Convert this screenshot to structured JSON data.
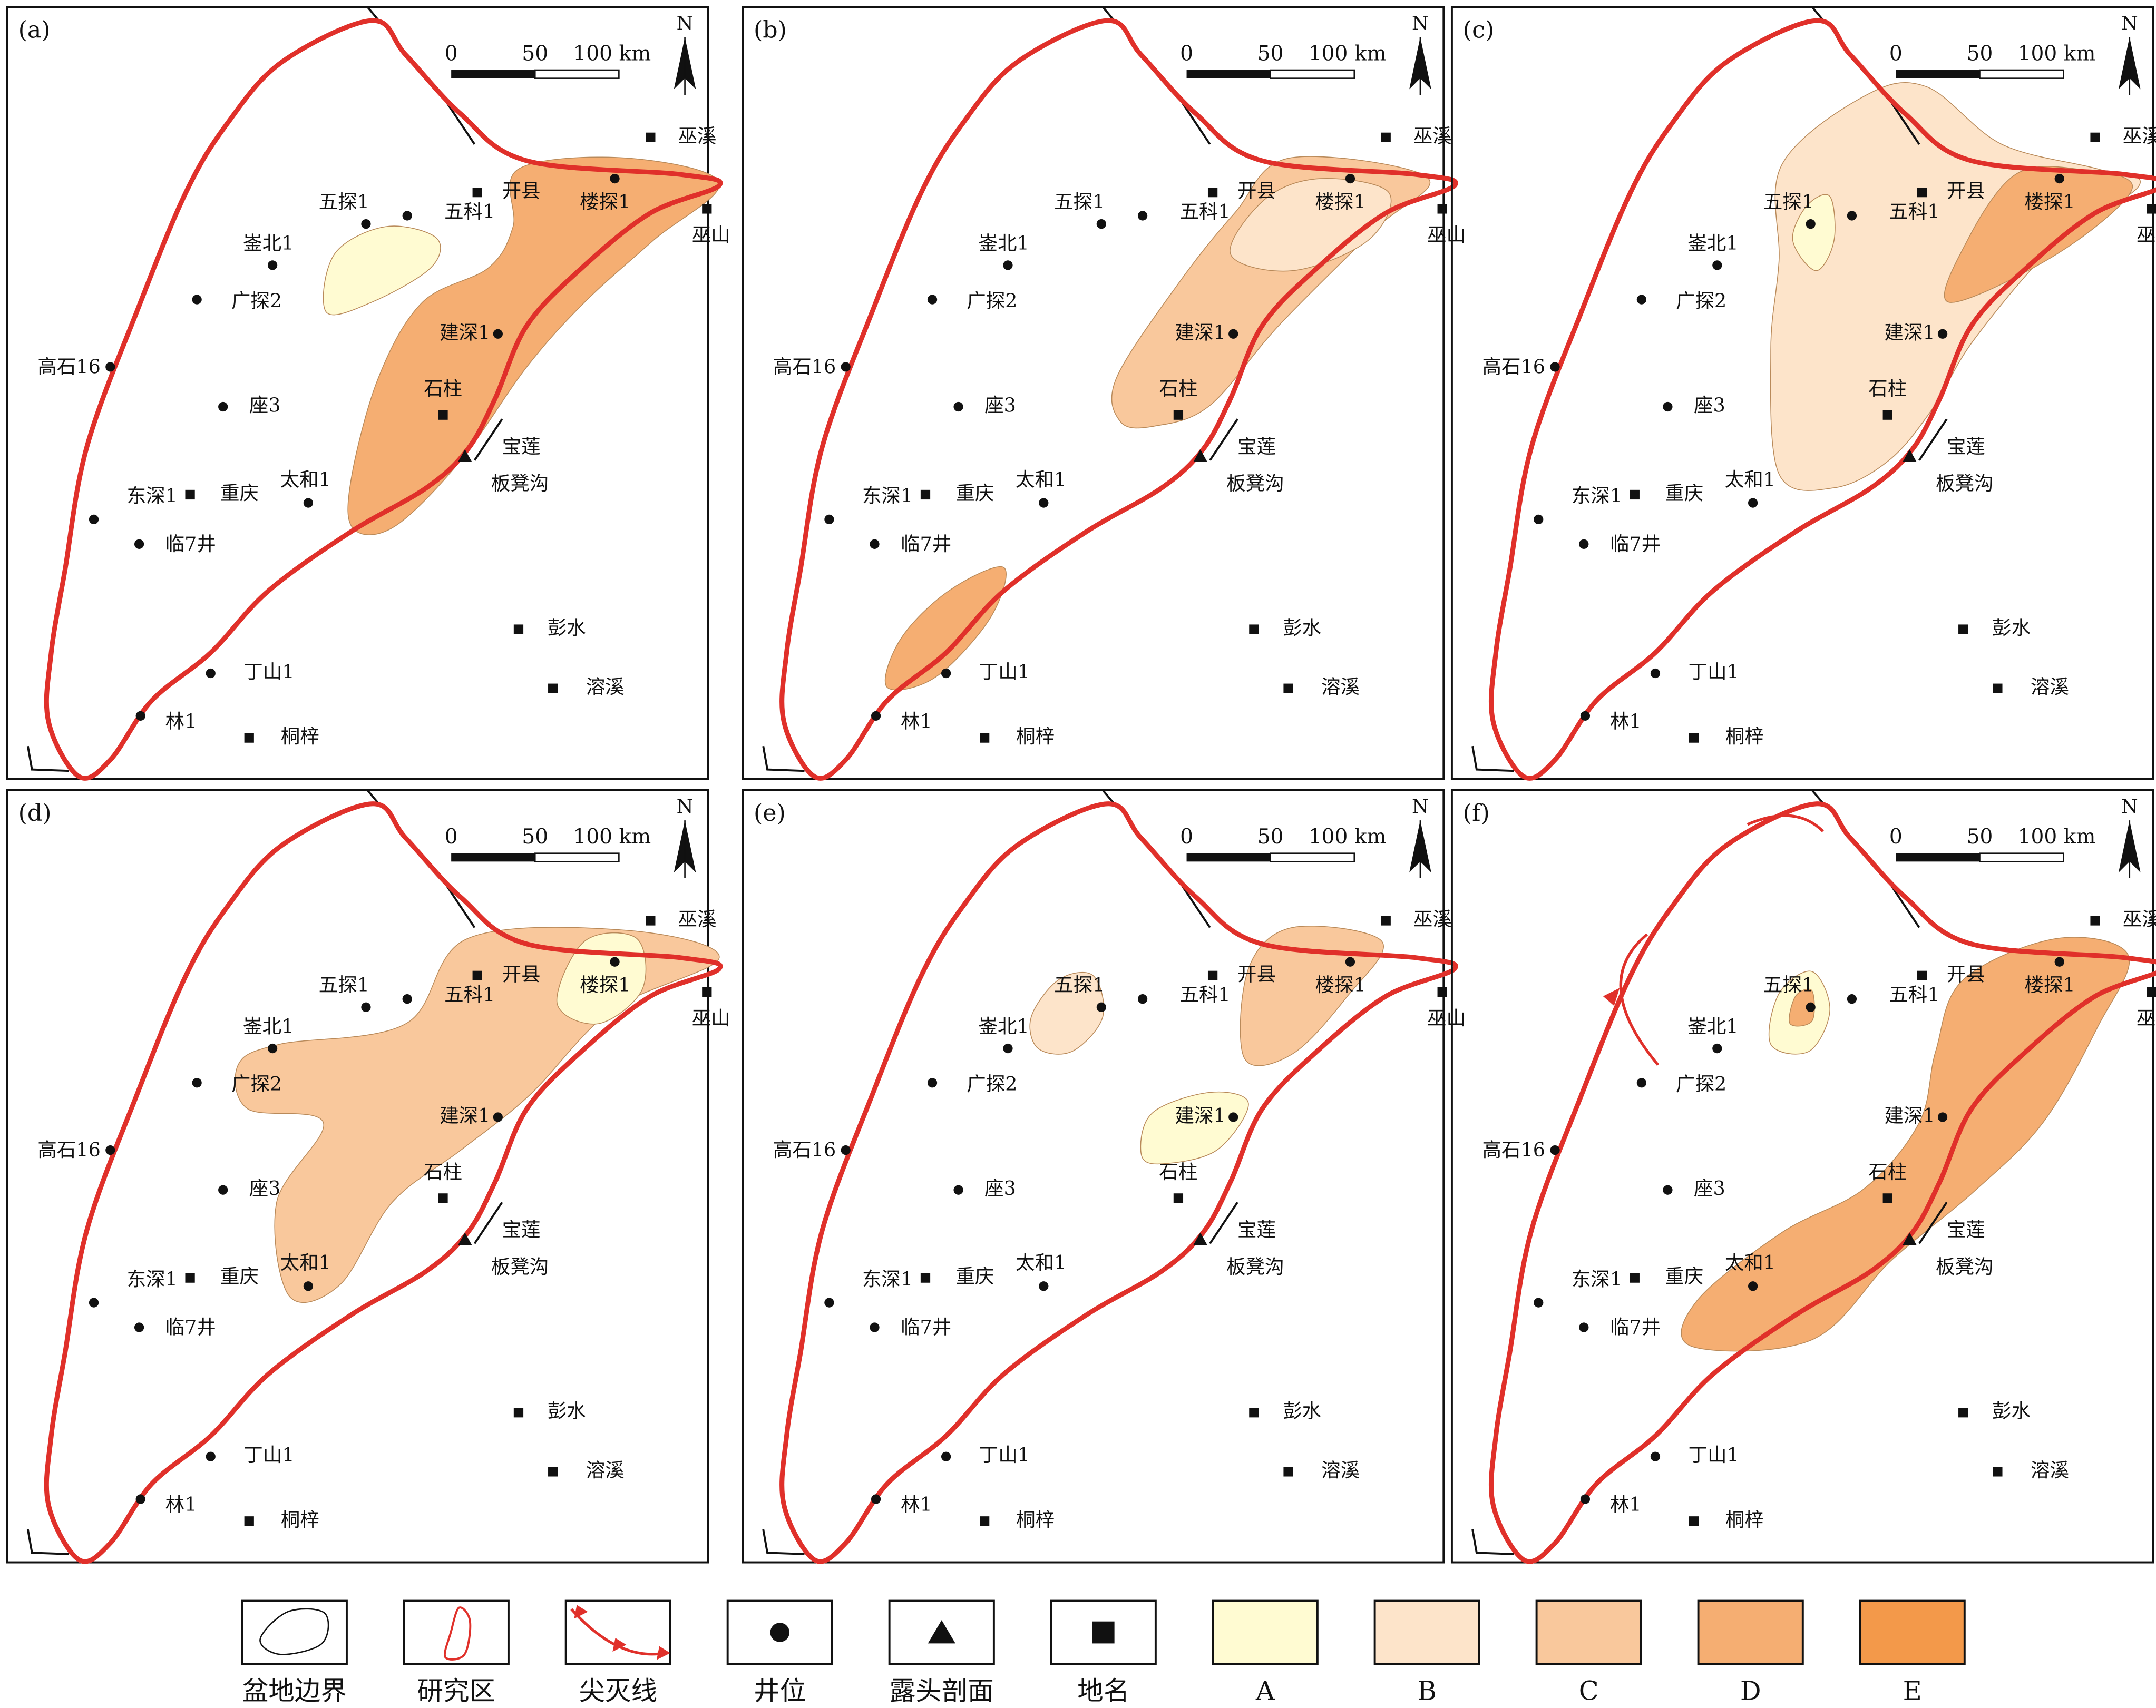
{
  "panels": [
    {
      "label": "(a)"
    },
    {
      "label": "(b)"
    },
    {
      "label": "(c)"
    },
    {
      "label": "(d)"
    },
    {
      "label": "(e)"
    },
    {
      "label": "(f)"
    }
  ],
  "scale_bar": [
    "0",
    "50",
    "100 km"
  ],
  "north": "N",
  "places": [
    {
      "name": "巫溪",
      "kind": "town"
    },
    {
      "name": "开县",
      "kind": "town"
    },
    {
      "name": "巫山",
      "kind": "town"
    },
    {
      "name": "楼探1",
      "kind": "well"
    },
    {
      "name": "五探1",
      "kind": "well"
    },
    {
      "name": "五科1",
      "kind": "well"
    },
    {
      "name": "崟北1",
      "kind": "well"
    },
    {
      "name": "广探2",
      "kind": "well"
    },
    {
      "name": "高石16",
      "kind": "well"
    },
    {
      "name": "座3",
      "kind": "well"
    },
    {
      "name": "建深1",
      "kind": "well"
    },
    {
      "name": "石柱",
      "kind": "town"
    },
    {
      "name": "宝莲",
      "kind": "outcrop"
    },
    {
      "name": "板凳沟",
      "kind": "label"
    },
    {
      "name": "太和1",
      "kind": "well"
    },
    {
      "name": "东深1",
      "kind": "well"
    },
    {
      "name": "重庆",
      "kind": "town"
    },
    {
      "name": "临7井",
      "kind": "well"
    },
    {
      "name": "彭水",
      "kind": "town"
    },
    {
      "name": "溶溪",
      "kind": "town"
    },
    {
      "name": "丁山1",
      "kind": "well"
    },
    {
      "name": "林1",
      "kind": "well"
    },
    {
      "name": "桐梓",
      "kind": "town"
    }
  ],
  "legend": [
    {
      "label": "盆地边界"
    },
    {
      "label": "研究区"
    },
    {
      "label": "尖灭线"
    },
    {
      "label": "井位"
    },
    {
      "label": "露头剖面"
    },
    {
      "label": "地名"
    },
    {
      "label": "A",
      "color": "#fffbd2"
    },
    {
      "label": "B",
      "color": "#fde4ca"
    },
    {
      "label": "C",
      "color": "#f9c89c"
    },
    {
      "label": "D",
      "color": "#f5ae72"
    },
    {
      "label": "E",
      "color": "#f3994a"
    }
  ]
}
